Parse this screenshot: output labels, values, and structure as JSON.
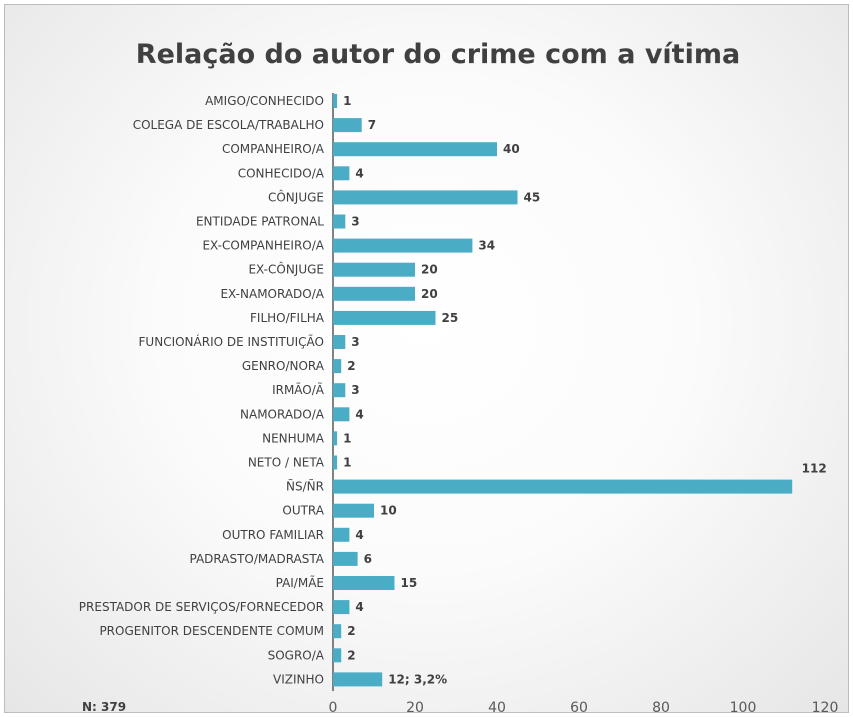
{
  "chart_data": {
    "type": "bar",
    "orientation": "horizontal",
    "title": "Relação do autor do crime com a vítima",
    "note": "N: 379",
    "categories": [
      "AMIGO/CONHECIDO",
      "COLEGA DE ESCOLA/TRABALHO",
      "COMPANHEIRO/A",
      "CONHECIDO/A",
      "CÔNJUGE",
      "ENTIDADE  PATRONAL",
      "EX-COMPANHEIRO/A",
      "EX-CÔNJUGE",
      "EX-NAMORADO/A",
      "FILHO/FILHA",
      "FUNCIONÁRIO DE INSTITUIÇÃO",
      "GENRO/NORA",
      "IRMÃO/Ã",
      "NAMORADO/A",
      "NENHUMA",
      "NETO / NETA",
      "ÑS/ÑR",
      "OUTRA",
      "OUTRO FAMILIAR",
      "PADRASTO/MADRASTA",
      "PAI/MÃE",
      "PRESTADOR DE SERVIÇOS/FORNECEDOR",
      "PROGENITOR DESCENDENTE  COMUM",
      "SOGRO/A",
      "VIZINHO"
    ],
    "values": [
      1,
      7,
      40,
      4,
      45,
      3,
      34,
      20,
      20,
      25,
      3,
      2,
      3,
      4,
      1,
      1,
      112,
      10,
      4,
      6,
      15,
      4,
      2,
      2,
      12
    ],
    "data_labels": [
      "1",
      "7",
      "40",
      "4",
      "45",
      "3",
      "34",
      "20",
      "20",
      "25",
      "3",
      "2",
      "3",
      "4",
      "1",
      "1",
      "112",
      "10",
      "4",
      "6",
      "15",
      "4",
      "2",
      "2",
      "12; 3,2%"
    ],
    "xlim": [
      0,
      120
    ],
    "xticks": [
      0,
      20,
      40,
      60,
      80,
      100,
      120
    ],
    "xlabel": "",
    "ylabel": "",
    "grid": false,
    "legend": "none",
    "bar_color": "#4bacc6"
  }
}
